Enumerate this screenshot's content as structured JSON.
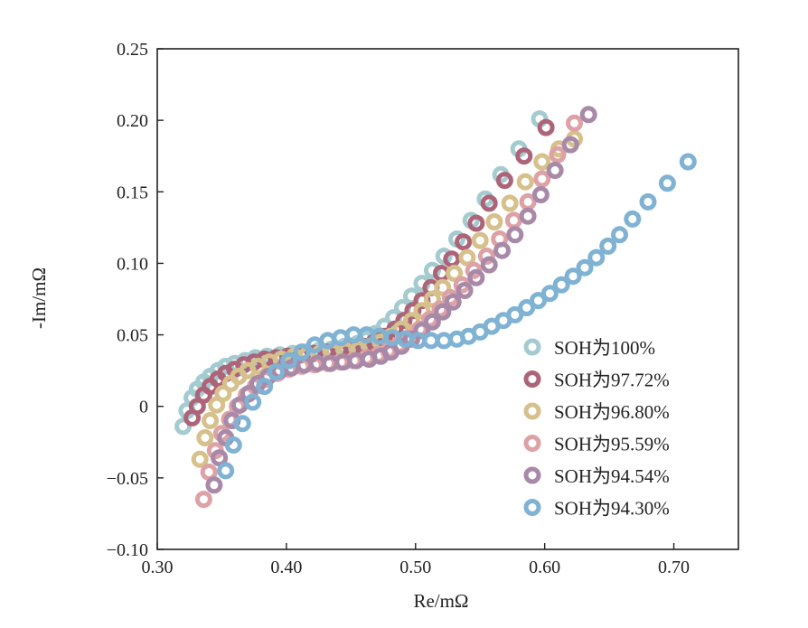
{
  "chart_data": {
    "type": "scatter",
    "title": "",
    "xlabel": "Re/mΩ",
    "ylabel": "-Im/mΩ",
    "xlim": [
      0.3,
      0.75
    ],
    "ylim": [
      -0.1,
      0.25
    ],
    "xticks": [
      "0.30",
      "0.40",
      "0.50",
      "0.60",
      "0.70"
    ],
    "yticks": [
      "−0.10",
      "−0.05",
      "0",
      "0.05",
      "0.10",
      "0.15",
      "0.20",
      "0.25"
    ],
    "grid": false,
    "legend_position": "lower-right",
    "marker": "ring",
    "series": [
      {
        "name": "SOH为100%",
        "color": "#a3cbd0",
        "points": [
          [
            0.32,
            -0.014
          ],
          [
            0.323,
            -0.003
          ],
          [
            0.327,
            0.006
          ],
          [
            0.331,
            0.012
          ],
          [
            0.336,
            0.017
          ],
          [
            0.341,
            0.021
          ],
          [
            0.347,
            0.025
          ],
          [
            0.353,
            0.028
          ],
          [
            0.36,
            0.03
          ],
          [
            0.368,
            0.032
          ],
          [
            0.376,
            0.034
          ],
          [
            0.385,
            0.035
          ],
          [
            0.395,
            0.036
          ],
          [
            0.405,
            0.037
          ],
          [
            0.415,
            0.038
          ],
          [
            0.425,
            0.039
          ],
          [
            0.435,
            0.04
          ],
          [
            0.445,
            0.042
          ],
          [
            0.455,
            0.044
          ],
          [
            0.462,
            0.047
          ],
          [
            0.469,
            0.051
          ],
          [
            0.476,
            0.056
          ],
          [
            0.483,
            0.062
          ],
          [
            0.49,
            0.069
          ],
          [
            0.497,
            0.077
          ],
          [
            0.505,
            0.086
          ],
          [
            0.513,
            0.095
          ],
          [
            0.522,
            0.105
          ],
          [
            0.532,
            0.117
          ],
          [
            0.543,
            0.13
          ],
          [
            0.554,
            0.145
          ],
          [
            0.566,
            0.162
          ],
          [
            0.58,
            0.18
          ],
          [
            0.596,
            0.201
          ]
        ]
      },
      {
        "name": "SOH为97.72%",
        "color": "#ad6478",
        "points": [
          [
            0.327,
            -0.008
          ],
          [
            0.331,
            0.0
          ],
          [
            0.336,
            0.008
          ],
          [
            0.341,
            0.014
          ],
          [
            0.347,
            0.019
          ],
          [
            0.353,
            0.023
          ],
          [
            0.36,
            0.026
          ],
          [
            0.367,
            0.029
          ],
          [
            0.375,
            0.031
          ],
          [
            0.383,
            0.033
          ],
          [
            0.392,
            0.034
          ],
          [
            0.401,
            0.035
          ],
          [
            0.411,
            0.036
          ],
          [
            0.421,
            0.037
          ],
          [
            0.431,
            0.038
          ],
          [
            0.441,
            0.039
          ],
          [
            0.451,
            0.04
          ],
          [
            0.46,
            0.042
          ],
          [
            0.468,
            0.045
          ],
          [
            0.476,
            0.049
          ],
          [
            0.484,
            0.054
          ],
          [
            0.491,
            0.06
          ],
          [
            0.498,
            0.067
          ],
          [
            0.505,
            0.074
          ],
          [
            0.512,
            0.083
          ],
          [
            0.52,
            0.093
          ],
          [
            0.528,
            0.103
          ],
          [
            0.537,
            0.115
          ],
          [
            0.547,
            0.128
          ],
          [
            0.557,
            0.142
          ],
          [
            0.569,
            0.158
          ],
          [
            0.584,
            0.175
          ],
          [
            0.601,
            0.195
          ]
        ]
      },
      {
        "name": "SOH为96.80%",
        "color": "#d6c08c",
        "points": [
          [
            0.333,
            -0.037
          ],
          [
            0.337,
            -0.022
          ],
          [
            0.341,
            -0.01
          ],
          [
            0.346,
            0.001
          ],
          [
            0.351,
            0.009
          ],
          [
            0.357,
            0.016
          ],
          [
            0.363,
            0.021
          ],
          [
            0.37,
            0.025
          ],
          [
            0.378,
            0.028
          ],
          [
            0.387,
            0.031
          ],
          [
            0.396,
            0.033
          ],
          [
            0.406,
            0.035
          ],
          [
            0.416,
            0.036
          ],
          [
            0.426,
            0.037
          ],
          [
            0.436,
            0.038
          ],
          [
            0.446,
            0.039
          ],
          [
            0.456,
            0.04
          ],
          [
            0.465,
            0.042
          ],
          [
            0.473,
            0.045
          ],
          [
            0.481,
            0.049
          ],
          [
            0.489,
            0.054
          ],
          [
            0.497,
            0.06
          ],
          [
            0.505,
            0.067
          ],
          [
            0.513,
            0.075
          ],
          [
            0.521,
            0.083
          ],
          [
            0.53,
            0.093
          ],
          [
            0.54,
            0.104
          ],
          [
            0.55,
            0.116
          ],
          [
            0.561,
            0.129
          ],
          [
            0.573,
            0.142
          ],
          [
            0.585,
            0.157
          ],
          [
            0.598,
            0.171
          ],
          [
            0.611,
            0.18
          ],
          [
            0.623,
            0.187
          ]
        ]
      },
      {
        "name": "SOH为95.59%",
        "color": "#dea1a5",
        "points": [
          [
            0.336,
            -0.065
          ],
          [
            0.34,
            -0.046
          ],
          [
            0.345,
            -0.031
          ],
          [
            0.35,
            -0.019
          ],
          [
            0.356,
            -0.009
          ],
          [
            0.362,
            0.0
          ],
          [
            0.369,
            0.008
          ],
          [
            0.376,
            0.014
          ],
          [
            0.384,
            0.019
          ],
          [
            0.393,
            0.023
          ],
          [
            0.402,
            0.026
          ],
          [
            0.412,
            0.028
          ],
          [
            0.422,
            0.029
          ],
          [
            0.432,
            0.03
          ],
          [
            0.442,
            0.031
          ],
          [
            0.452,
            0.032
          ],
          [
            0.462,
            0.034
          ],
          [
            0.471,
            0.036
          ],
          [
            0.479,
            0.039
          ],
          [
            0.487,
            0.043
          ],
          [
            0.495,
            0.048
          ],
          [
            0.503,
            0.054
          ],
          [
            0.511,
            0.061
          ],
          [
            0.519,
            0.068
          ],
          [
            0.527,
            0.076
          ],
          [
            0.536,
            0.085
          ],
          [
            0.545,
            0.095
          ],
          [
            0.555,
            0.105
          ],
          [
            0.565,
            0.117
          ],
          [
            0.576,
            0.13
          ],
          [
            0.587,
            0.143
          ],
          [
            0.598,
            0.159
          ],
          [
            0.61,
            0.176
          ],
          [
            0.623,
            0.198
          ]
        ]
      },
      {
        "name": "SOH为94.54%",
        "color": "#a889a8",
        "points": [
          [
            0.344,
            -0.055
          ],
          [
            0.348,
            -0.036
          ],
          [
            0.353,
            -0.022
          ],
          [
            0.358,
            -0.01
          ],
          [
            0.364,
            0.001
          ],
          [
            0.371,
            0.009
          ],
          [
            0.378,
            0.016
          ],
          [
            0.386,
            0.021
          ],
          [
            0.395,
            0.025
          ],
          [
            0.404,
            0.027
          ],
          [
            0.414,
            0.029
          ],
          [
            0.424,
            0.03
          ],
          [
            0.434,
            0.03
          ],
          [
            0.444,
            0.031
          ],
          [
            0.454,
            0.032
          ],
          [
            0.464,
            0.033
          ],
          [
            0.473,
            0.035
          ],
          [
            0.481,
            0.038
          ],
          [
            0.489,
            0.042
          ],
          [
            0.497,
            0.047
          ],
          [
            0.505,
            0.053
          ],
          [
            0.513,
            0.059
          ],
          [
            0.521,
            0.066
          ],
          [
            0.529,
            0.073
          ],
          [
            0.538,
            0.081
          ],
          [
            0.547,
            0.09
          ],
          [
            0.557,
            0.099
          ],
          [
            0.567,
            0.109
          ],
          [
            0.577,
            0.12
          ],
          [
            0.587,
            0.133
          ],
          [
            0.597,
            0.148
          ],
          [
            0.608,
            0.165
          ],
          [
            0.62,
            0.183
          ],
          [
            0.634,
            0.204
          ]
        ]
      },
      {
        "name": "SOH为94.30%",
        "color": "#7fb2d3",
        "points": [
          [
            0.353,
            -0.045
          ],
          [
            0.359,
            -0.027
          ],
          [
            0.366,
            -0.012
          ],
          [
            0.374,
            0.003
          ],
          [
            0.383,
            0.014
          ],
          [
            0.392,
            0.024
          ],
          [
            0.402,
            0.032
          ],
          [
            0.412,
            0.038
          ],
          [
            0.422,
            0.043
          ],
          [
            0.432,
            0.046
          ],
          [
            0.442,
            0.048
          ],
          [
            0.452,
            0.05
          ],
          [
            0.462,
            0.05
          ],
          [
            0.472,
            0.049
          ],
          [
            0.482,
            0.048
          ],
          [
            0.492,
            0.047
          ],
          [
            0.502,
            0.046
          ],
          [
            0.512,
            0.046
          ],
          [
            0.522,
            0.046
          ],
          [
            0.532,
            0.047
          ],
          [
            0.541,
            0.049
          ],
          [
            0.55,
            0.052
          ],
          [
            0.559,
            0.056
          ],
          [
            0.568,
            0.06
          ],
          [
            0.577,
            0.064
          ],
          [
            0.586,
            0.069
          ],
          [
            0.595,
            0.074
          ],
          [
            0.604,
            0.079
          ],
          [
            0.613,
            0.085
          ],
          [
            0.622,
            0.091
          ],
          [
            0.631,
            0.097
          ],
          [
            0.64,
            0.104
          ],
          [
            0.649,
            0.112
          ],
          [
            0.658,
            0.12
          ],
          [
            0.668,
            0.131
          ],
          [
            0.68,
            0.143
          ],
          [
            0.695,
            0.156
          ],
          [
            0.711,
            0.171
          ]
        ]
      }
    ]
  }
}
